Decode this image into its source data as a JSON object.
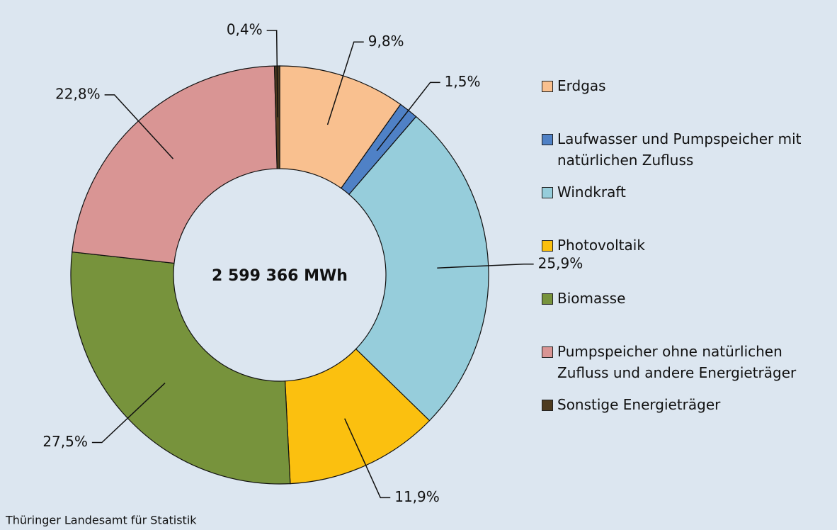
{
  "chart_data": {
    "type": "donut",
    "center_label": "2 599 366 MWh",
    "source": "Thüringer Landesamt für Statistik",
    "series": [
      {
        "name": "Erdgas",
        "color": "#f9c08f",
        "values": [
          9.8
        ],
        "value_labels": [
          "9,8%"
        ]
      },
      {
        "name": "Laufwasser und Pumpspeicher mit natürlichen Zufluss",
        "color": "#4f81c6",
        "values": [
          1.5
        ],
        "value_labels": [
          "1,5%"
        ]
      },
      {
        "name": "Windkraft",
        "color": "#96cddb",
        "values": [
          25.9
        ],
        "value_labels": [
          "25,9%"
        ]
      },
      {
        "name": "Photovoltaik",
        "color": "#fbc00f",
        "values": [
          11.9
        ],
        "value_labels": [
          "11,9%"
        ]
      },
      {
        "name": "Biomasse",
        "color": "#77933c",
        "values": [
          27.5
        ],
        "value_labels": [
          "27,5%"
        ]
      },
      {
        "name": "Pumpspeicher ohne natürlichen Zufluss und andere Energieträger",
        "color": "#d99594",
        "values": [
          22.8
        ],
        "value_labels": [
          "22,8%"
        ]
      },
      {
        "name": "Sonstige Energieträger",
        "color": "#4e3b1f",
        "values": [
          0.4
        ],
        "value_labels": [
          "0,4%"
        ]
      }
    ]
  }
}
